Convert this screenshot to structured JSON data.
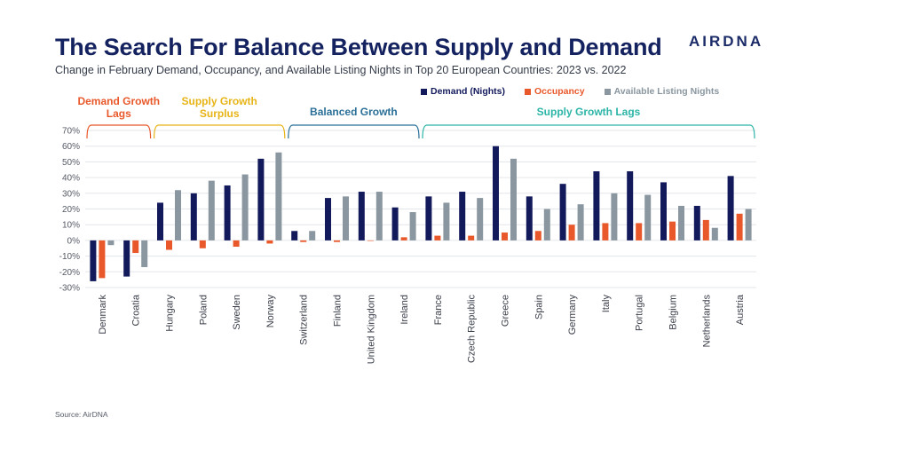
{
  "header": {
    "title": "The Search For Balance Between Supply and Demand",
    "subtitle": "Change in February Demand, Occupancy, and Available Listing Nights in Top 20 European Countries: 2023 vs. 2022",
    "logo_text": "AIRDNA"
  },
  "source": "Source: AirDNA",
  "colors": {
    "demand": "#131a5c",
    "occupancy": "#e8582a",
    "listing": "#8a97a0",
    "grid": "#e3e6ea",
    "title": "#14225f"
  },
  "groups": [
    {
      "label_lines": [
        "Demand Growth",
        "Lags"
      ],
      "color": "#e8582a",
      "start": 0,
      "end": 1
    },
    {
      "label_lines": [
        "Supply Growth",
        "Surplus"
      ],
      "color": "#e7b416",
      "start": 2,
      "end": 5
    },
    {
      "label_lines": [
        "Balanced Growth"
      ],
      "color": "#2a6f97",
      "start": 6,
      "end": 9
    },
    {
      "label_lines": [
        "Supply Growth Lags"
      ],
      "color": "#2cb5a7",
      "start": 10,
      "end": 19
    }
  ],
  "chart_data": {
    "type": "bar",
    "categories": [
      "Denmark",
      "Croatia",
      "Hungary",
      "Poland",
      "Sweden",
      "Norway",
      "Switzerland",
      "Finland",
      "United Kingdom",
      "Ireland",
      "France",
      "Czech Republic",
      "Greece",
      "Spain",
      "Germany",
      "Italy",
      "Portugal",
      "Belgium",
      "Netherlands",
      "Austria"
    ],
    "series": [
      {
        "name": "Demand (Nights)",
        "color": "#131a5c",
        "values": [
          -26,
          -23,
          24,
          30,
          35,
          52,
          6,
          27,
          31,
          21,
          28,
          31,
          60,
          28,
          36,
          44,
          44,
          37,
          22,
          41
        ]
      },
      {
        "name": "Occupancy",
        "color": "#e8582a",
        "values": [
          -24,
          -8,
          -6,
          -5,
          -4,
          -2,
          -1,
          -1,
          0,
          2,
          3,
          3,
          5,
          6,
          10,
          11,
          11,
          12,
          13,
          17
        ]
      },
      {
        "name": "Available Listing Nights",
        "color": "#8a97a0",
        "values": [
          -3,
          -17,
          32,
          38,
          42,
          56,
          6,
          28,
          31,
          18,
          24,
          27,
          52,
          20,
          23,
          30,
          29,
          22,
          8,
          20
        ]
      }
    ],
    "y_ticks": [
      "70%",
      "60%",
      "50%",
      "40%",
      "30%",
      "20%",
      "10%",
      "0%",
      "-10%",
      "-20%",
      "-30%"
    ],
    "ylim": [
      -30,
      70
    ],
    "grid": true,
    "legend_position": "top-right"
  }
}
